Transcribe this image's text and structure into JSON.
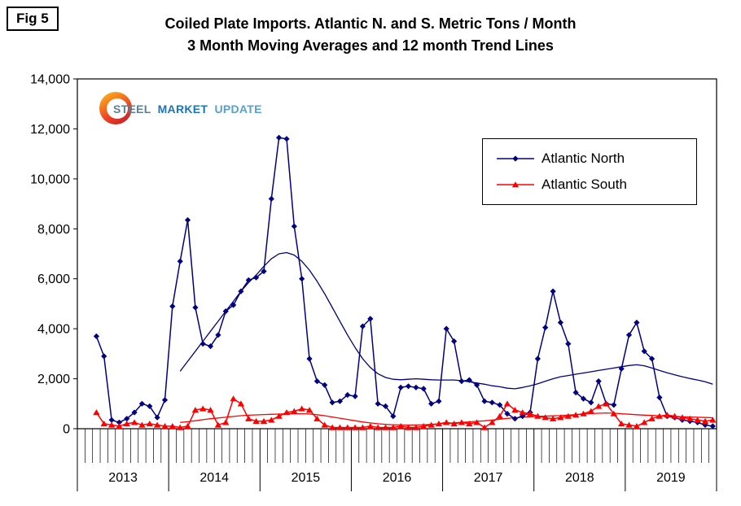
{
  "fig_label": "Fig 5",
  "title": {
    "line1": "Coiled Plate Imports. Atlantic N. and S. Metric Tons / Month",
    "line2": "3 Month Moving Averages and 12 month Trend Lines"
  },
  "logo": {
    "steel": "STEEL",
    "market": "MARKET",
    "update": "UPDATE"
  },
  "chart_data": {
    "type": "line",
    "title": "Coiled Plate Imports. Atlantic N. and S. Metric Tons / Month",
    "subtitle": "3 Month Moving Averages and 12 month Trend Lines",
    "units": "Metric Tons / Month",
    "months": 84,
    "years": [
      "2013",
      "2014",
      "2015",
      "2016",
      "2017",
      "2018",
      "2019"
    ],
    "ylim": [
      0,
      14000
    ],
    "yticks": [
      0,
      2000,
      4000,
      6000,
      8000,
      10000,
      12000,
      14000
    ],
    "ytick_labels": [
      "0",
      "2,000",
      "4,000",
      "6,000",
      "8,000",
      "10,000",
      "12,000",
      "14,000"
    ],
    "grid": false,
    "legend_position": "upper-right",
    "series": [
      {
        "name": "Atlantic North",
        "color": "#000080",
        "marker": "diamond",
        "values": [
          null,
          null,
          3700,
          2900,
          350,
          250,
          400,
          650,
          1000,
          900,
          450,
          1150,
          4900,
          6700,
          8350,
          4850,
          3400,
          3300,
          3750,
          4700,
          4950,
          5500,
          5950,
          6050,
          6300,
          9200,
          11650,
          11600,
          8100,
          6000,
          2800,
          1900,
          1750,
          1050,
          1100,
          1350,
          1300,
          4100,
          4400,
          1000,
          900,
          500,
          1650,
          1700,
          1650,
          1600,
          1000,
          1100,
          4000,
          3500,
          1900,
          1950,
          1750,
          1100,
          1050,
          950,
          600,
          400,
          500,
          650,
          2800,
          4050,
          5500,
          4250,
          3400,
          1450,
          1200,
          1050,
          1900,
          1000,
          950,
          2400,
          3750,
          4250,
          3100,
          2800,
          1250,
          500,
          450,
          350,
          300,
          250,
          150,
          100
        ]
      },
      {
        "name": "Atlantic South",
        "color": "#FF0000",
        "marker": "triangle",
        "values": [
          null,
          null,
          650,
          200,
          150,
          100,
          200,
          250,
          150,
          200,
          150,
          100,
          100,
          50,
          100,
          750,
          800,
          750,
          150,
          250,
          1200,
          1000,
          400,
          300,
          300,
          350,
          500,
          650,
          700,
          800,
          750,
          400,
          150,
          50,
          50,
          50,
          50,
          50,
          100,
          50,
          50,
          50,
          100,
          50,
          50,
          100,
          150,
          200,
          250,
          200,
          250,
          200,
          250,
          50,
          250,
          500,
          1000,
          750,
          650,
          600,
          500,
          450,
          400,
          450,
          500,
          550,
          600,
          700,
          900,
          1000,
          600,
          200,
          150,
          100,
          250,
          400,
          500,
          550,
          500,
          450,
          400,
          350,
          300,
          350
        ]
      }
    ],
    "trend_lines": [
      {
        "name": "Atlantic North 12 month trend",
        "color": "#000080",
        "start_index": 13,
        "values": [
          2300,
          2700,
          3100,
          3500,
          3900,
          4300,
          4700,
          5100,
          5500,
          5850,
          6150,
          6500,
          6800,
          7000,
          7050,
          6950,
          6700,
          6350,
          5900,
          5400,
          4850,
          4300,
          3750,
          3250,
          2800,
          2450,
          2200,
          2050,
          1980,
          1960,
          1980,
          2000,
          1980,
          1960,
          1950,
          1950,
          1950,
          1920,
          1880,
          1830,
          1780,
          1720,
          1680,
          1620,
          1600,
          1650,
          1720,
          1800,
          1900,
          2000,
          2080,
          2130,
          2180,
          2230,
          2280,
          2330,
          2380,
          2430,
          2480,
          2530,
          2560,
          2520,
          2430,
          2330,
          2240,
          2160,
          2080,
          2010,
          1950,
          1880,
          1780
        ]
      },
      {
        "name": "Atlantic South 12 month trend",
        "color": "#FF0000",
        "start_index": 13,
        "values": [
          250,
          280,
          320,
          360,
          400,
          430,
          460,
          490,
          520,
          540,
          555,
          565,
          575,
          585,
          595,
          600,
          600,
          590,
          560,
          520,
          470,
          420,
          370,
          320,
          270,
          230,
          200,
          175,
          160,
          150,
          145,
          150,
          160,
          175,
          195,
          215,
          235,
          255,
          275,
          295,
          315,
          345,
          380,
          415,
          440,
          460,
          480,
          495,
          505,
          515,
          525,
          545,
          565,
          585,
          605,
          620,
          630,
          620,
          600,
          580,
          560,
          545,
          530,
          515,
          500,
          490,
          480,
          470,
          460,
          450,
          440
        ]
      }
    ]
  }
}
